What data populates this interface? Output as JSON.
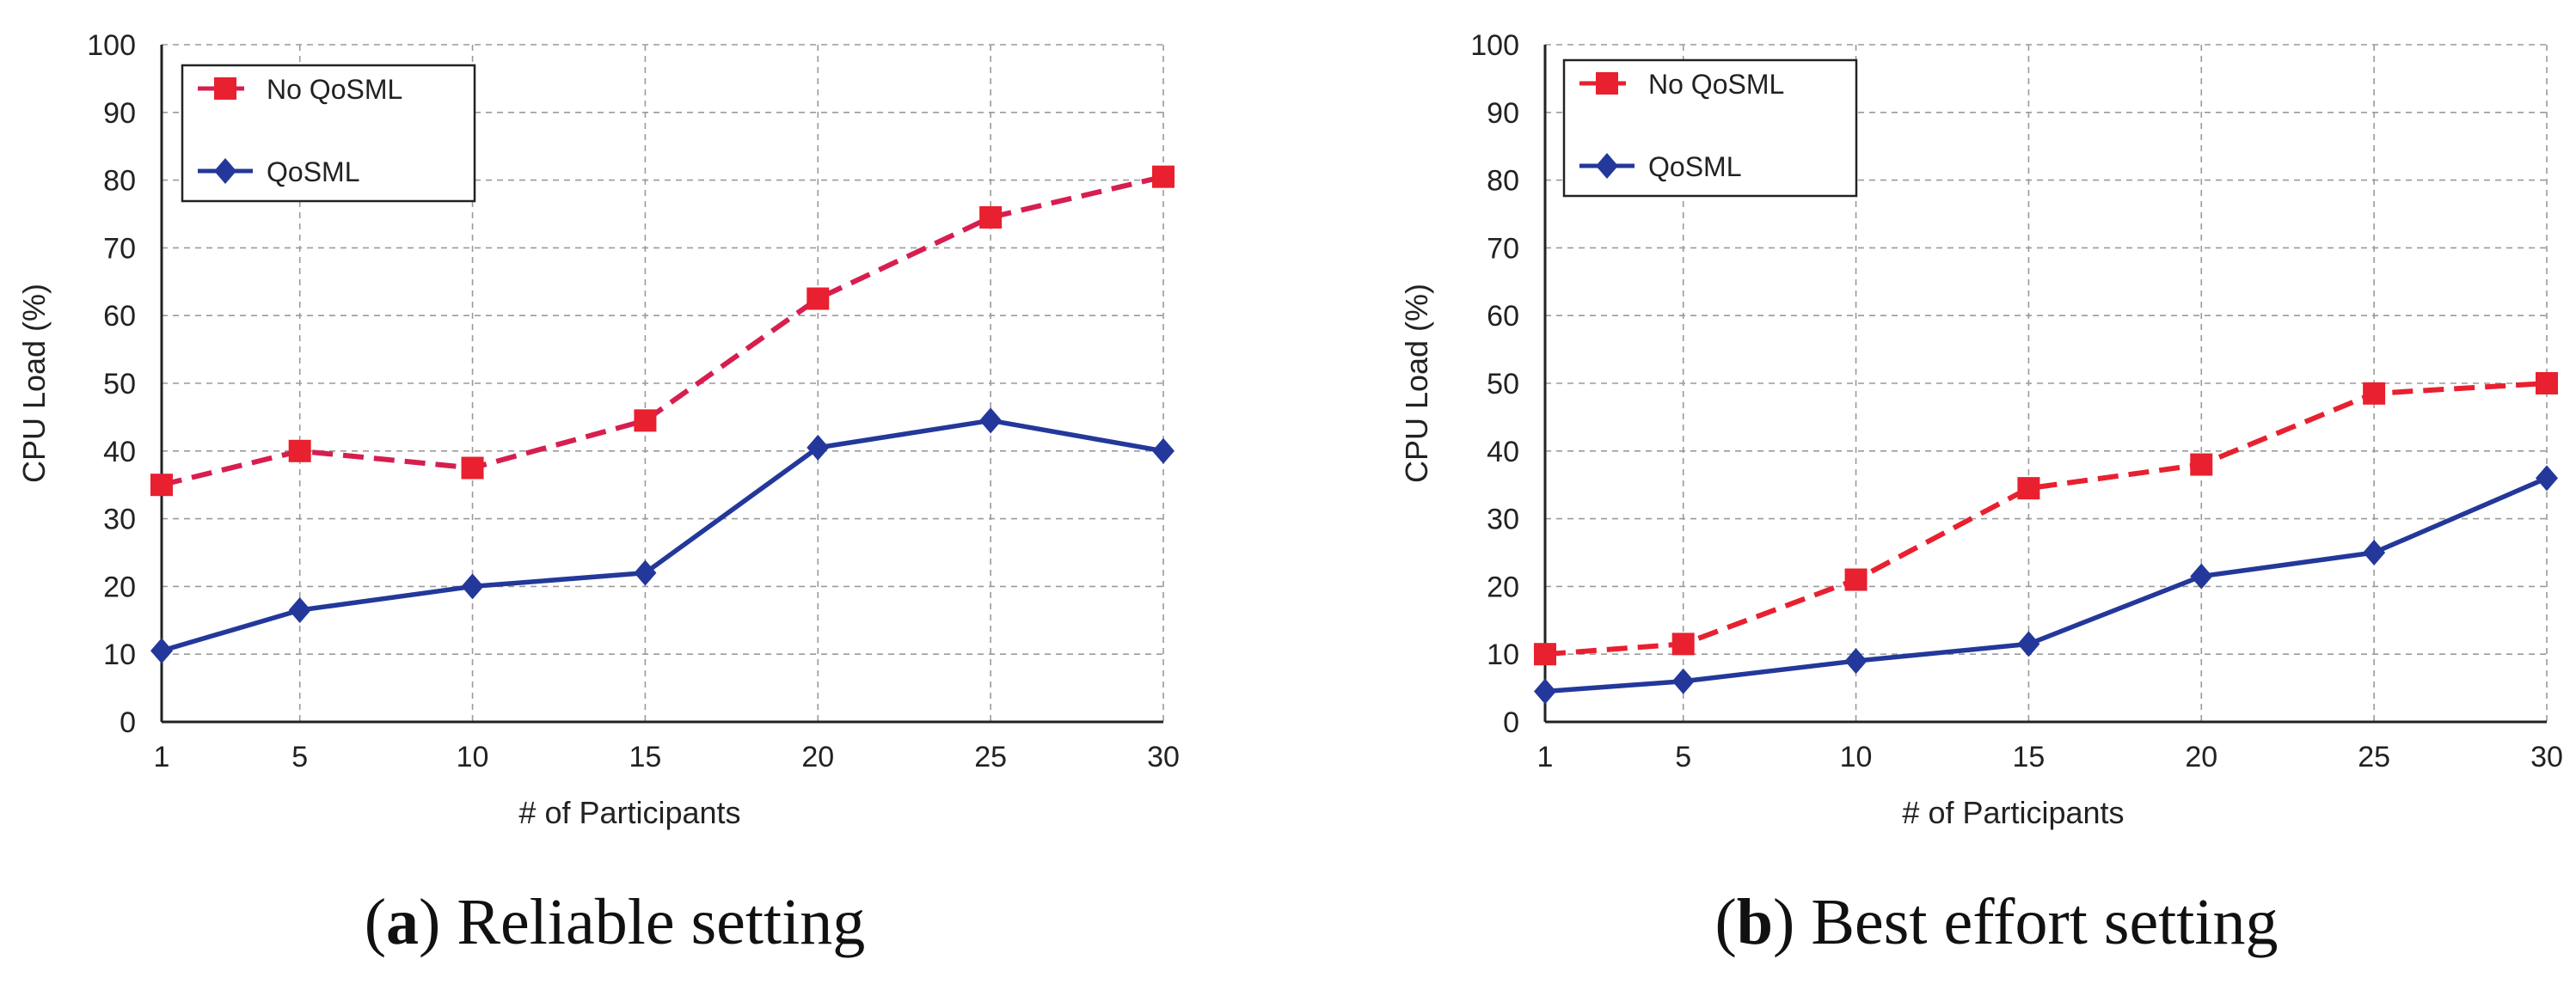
{
  "chart_data": [
    {
      "type": "line",
      "panel_label": "a",
      "caption": "Reliable setting",
      "title": "",
      "xlabel": "#  of Participants",
      "ylabel": "CPU Load   (%)",
      "x": [
        1,
        5,
        10,
        15,
        20,
        25,
        30
      ],
      "xticks": [
        "1",
        "5",
        "10",
        "15",
        "20",
        "25",
        "30"
      ],
      "yticks": [
        "0",
        "10",
        "20",
        "30",
        "40",
        "50",
        "60",
        "70",
        "80",
        "90",
        "100"
      ],
      "xlim": [
        1,
        30
      ],
      "ylim": [
        0,
        100
      ],
      "grid": true,
      "legend_position": "top-left",
      "series": [
        {
          "name": "No QoSML",
          "values": [
            35,
            40,
            37.5,
            44.5,
            62.5,
            74.5,
            80.5
          ],
          "color": "#d71e4f",
          "marker_color": "#e8202f",
          "marker": "square",
          "line_style": "dashed"
        },
        {
          "name": "QoSML",
          "values": [
            10.5,
            16.5,
            20,
            22,
            40.5,
            44.5,
            40
          ],
          "color": "#23389a",
          "marker_color": "#23389a",
          "marker": "diamond",
          "line_style": "solid"
        }
      ]
    },
    {
      "type": "line",
      "panel_label": "b",
      "caption": "Best effort setting",
      "title": "",
      "xlabel": "#  of Participants",
      "ylabel": "CPU Load   (%)",
      "x": [
        1,
        5,
        10,
        15,
        20,
        25,
        30
      ],
      "xticks": [
        "1",
        "5",
        "10",
        "15",
        "20",
        "25",
        "30"
      ],
      "yticks": [
        "0",
        "10",
        "20",
        "30",
        "40",
        "50",
        "60",
        "70",
        "80",
        "90",
        "100"
      ],
      "xlim": [
        1,
        30
      ],
      "ylim": [
        0,
        100
      ],
      "grid": true,
      "legend_position": "top-left",
      "series": [
        {
          "name": "No QoSML",
          "values": [
            10,
            11.5,
            21,
            34.5,
            38,
            48.5,
            50
          ],
          "color": "#e8202f",
          "marker_color": "#e8202f",
          "marker": "square",
          "line_style": "dashed"
        },
        {
          "name": "QoSML",
          "values": [
            4.5,
            6,
            9,
            11.5,
            21.5,
            25,
            36
          ],
          "color": "#23389a",
          "marker_color": "#23389a",
          "marker": "diamond",
          "line_style": "solid"
        }
      ]
    }
  ]
}
